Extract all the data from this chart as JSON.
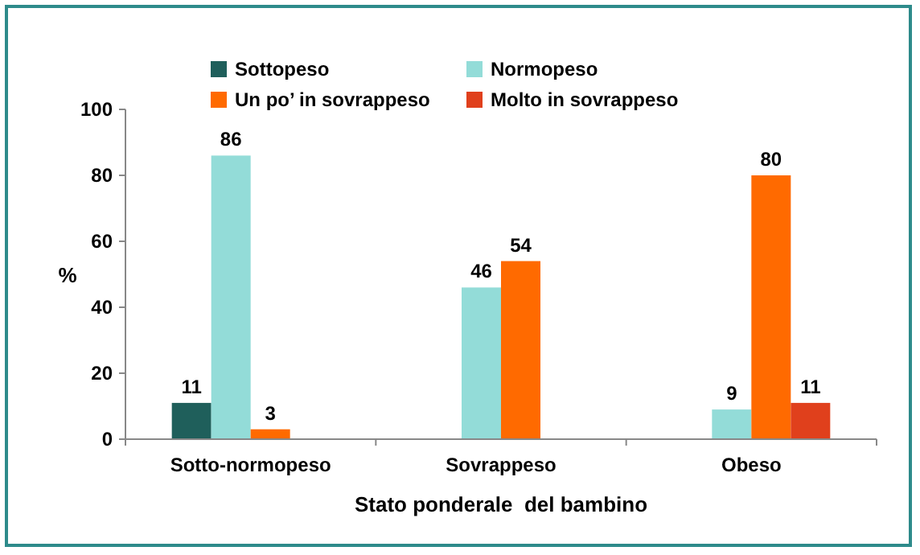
{
  "chart_data": {
    "type": "bar",
    "xlabel": "Stato ponderale  del bambino",
    "ylabel": "%",
    "categories": [
      "Sotto-normopeso",
      "Sovrappeso",
      "Obeso"
    ],
    "series": [
      {
        "name": "Sottopeso",
        "color": "#1f5f5b",
        "values": [
          11,
          null,
          null
        ]
      },
      {
        "name": "Normopeso",
        "color": "#93dcd8",
        "values": [
          86,
          46,
          9
        ]
      },
      {
        "name": "Un po’ in sovrappeso",
        "color": "#ff6a00",
        "values": [
          3,
          54,
          80
        ]
      },
      {
        "name": "Molto in sovrappeso",
        "color": "#e0401c",
        "values": [
          null,
          null,
          11
        ]
      }
    ],
    "ylim": [
      0,
      100
    ],
    "yticks": [
      0,
      20,
      40,
      60,
      80,
      100
    ],
    "data_labels": true,
    "legend": "top",
    "grid": false
  }
}
